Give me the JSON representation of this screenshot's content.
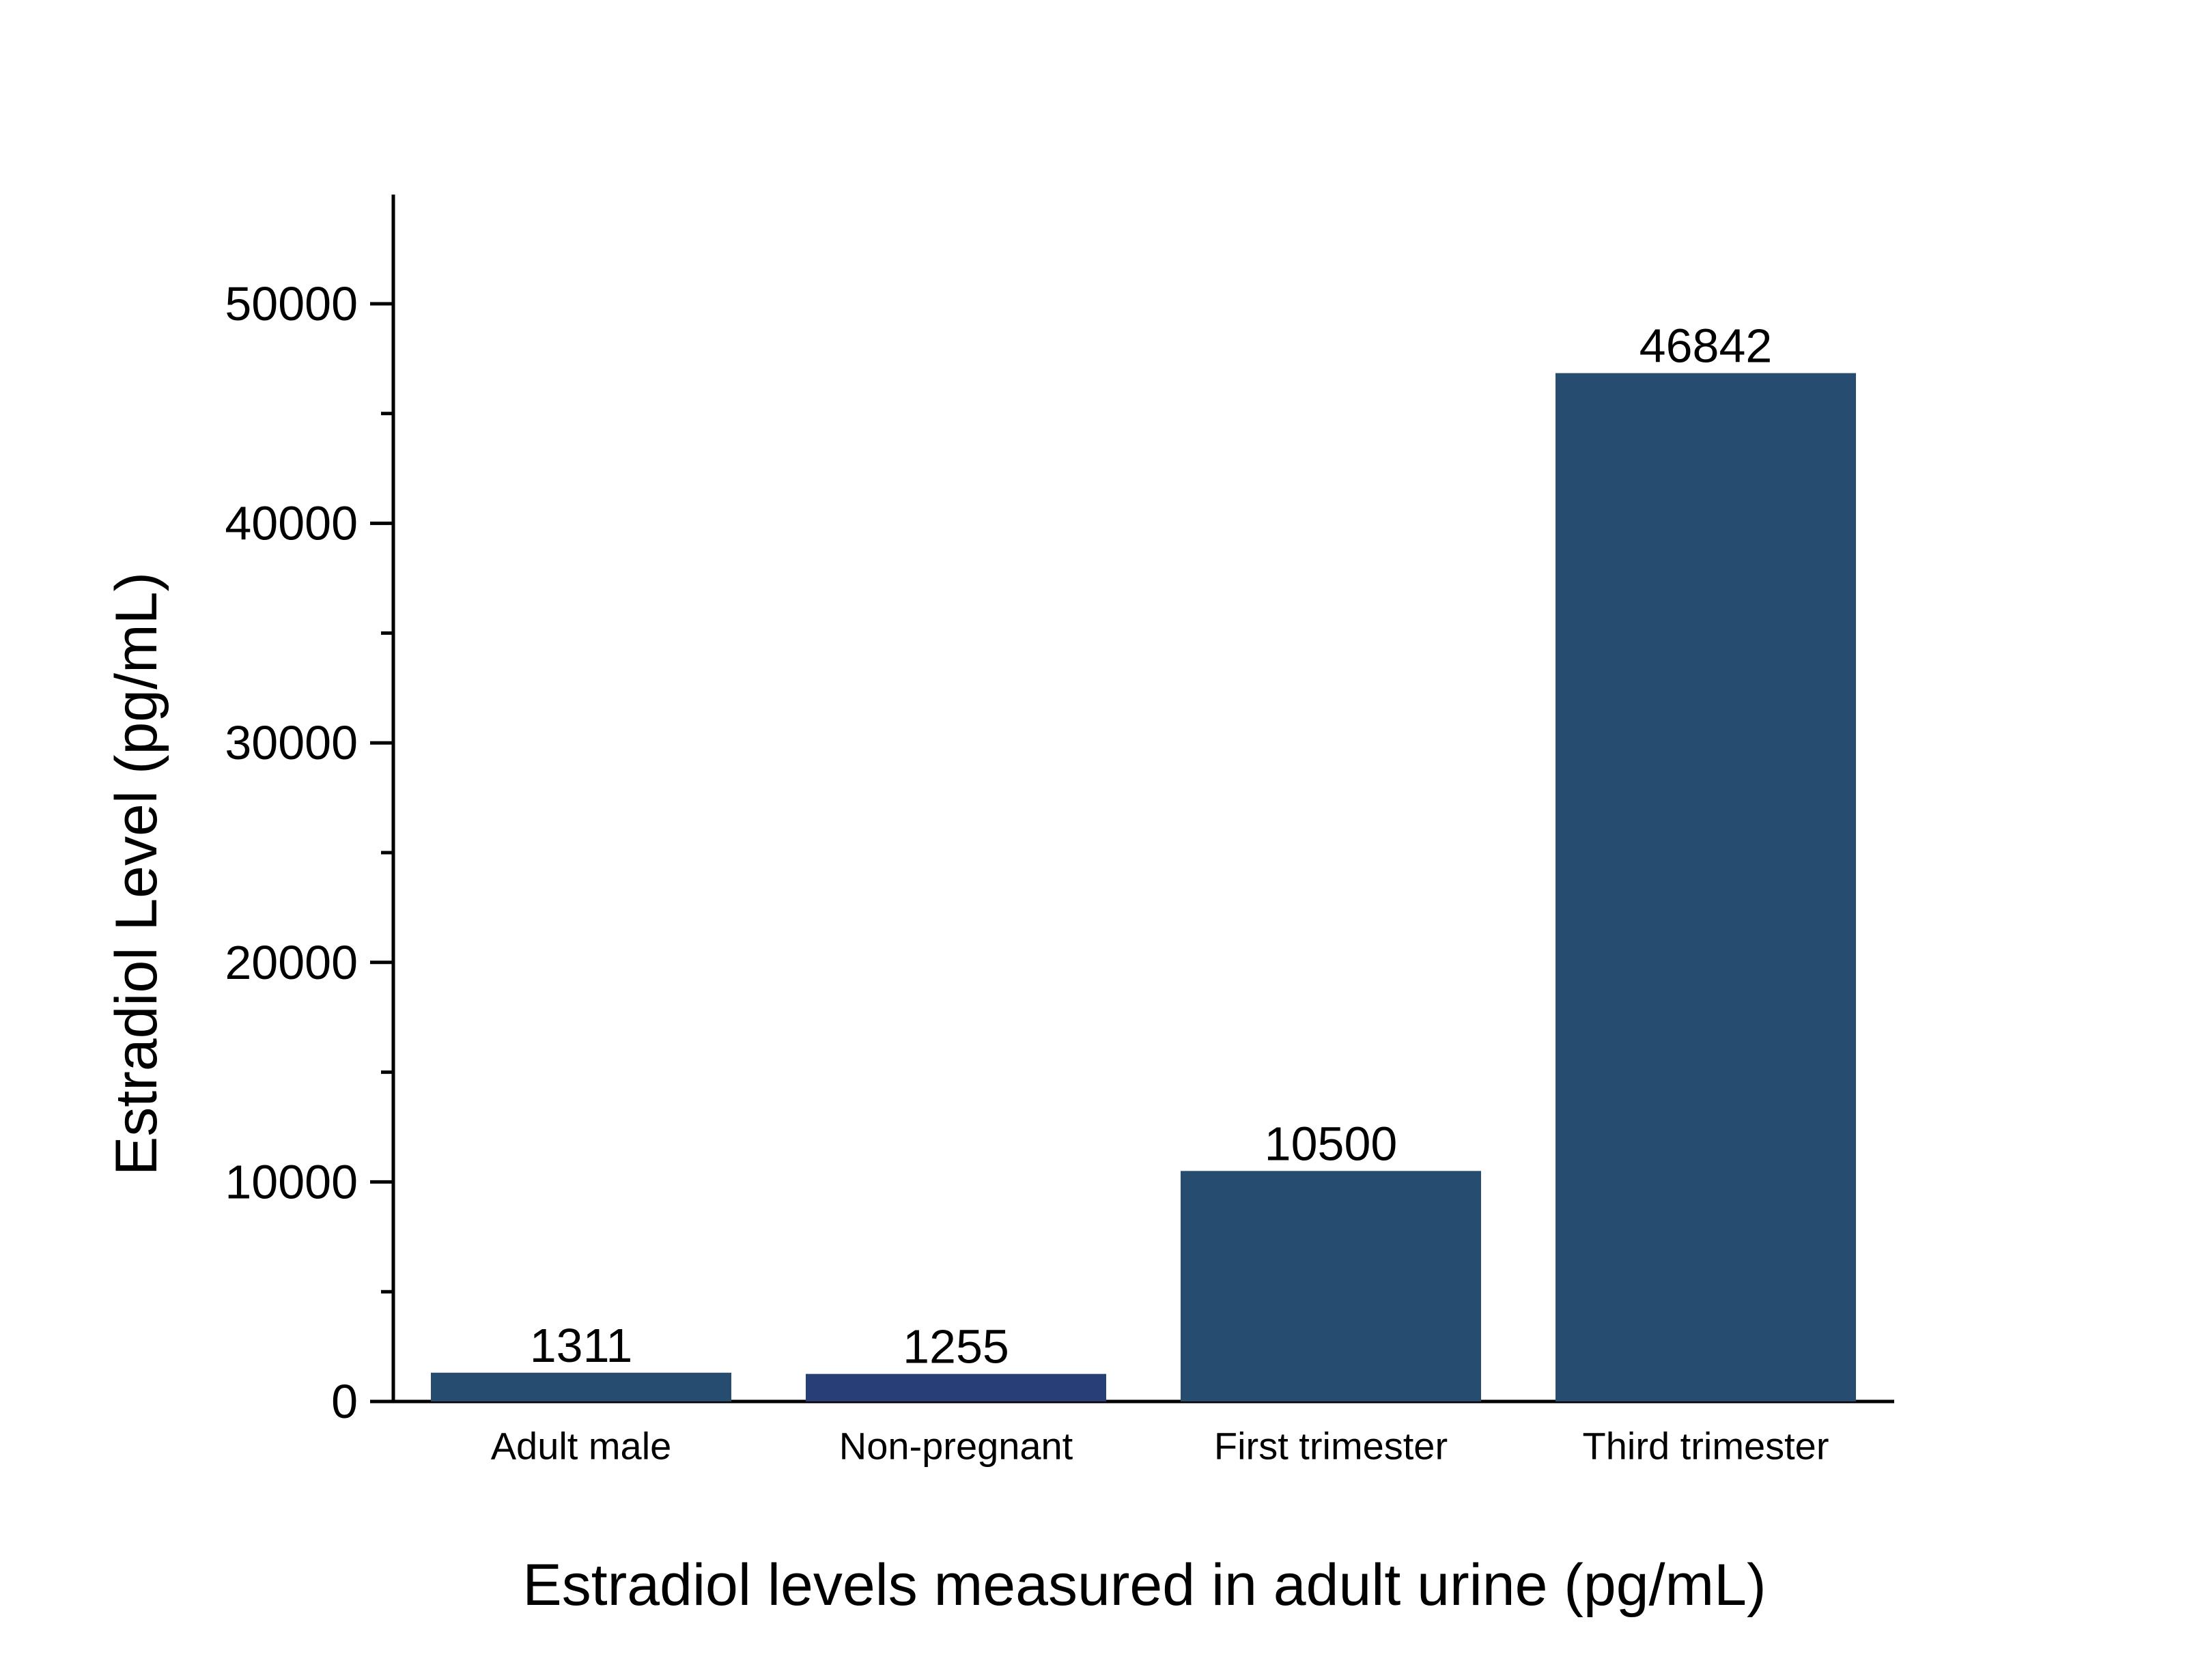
{
  "chart_data": {
    "type": "bar",
    "title": "",
    "xlabel": "Estradiol levels measured in adult urine (pg/mL)",
    "ylabel": "Estradiol Level (pg/mL)",
    "categories": [
      "Adult male",
      "Non-pregnant",
      "First trimester",
      "Third trimester"
    ],
    "values": [
      1311,
      1255,
      10500,
      46842
    ],
    "data_labels": [
      "1311",
      "1255",
      "10500",
      "46842"
    ],
    "ylim": [
      0,
      55000
    ],
    "y_ticks": [
      0,
      10000,
      20000,
      30000,
      40000,
      50000
    ],
    "y_tick_labels": [
      "0",
      "10000",
      "20000",
      "30000",
      "40000",
      "50000"
    ],
    "y_minor_ticks": [
      5000,
      15000,
      25000,
      35000,
      45000
    ],
    "grid": false,
    "legend": "none",
    "bar_colors": [
      "#264d6f",
      "#283f75",
      "#264d6f",
      "#264d6f"
    ]
  }
}
